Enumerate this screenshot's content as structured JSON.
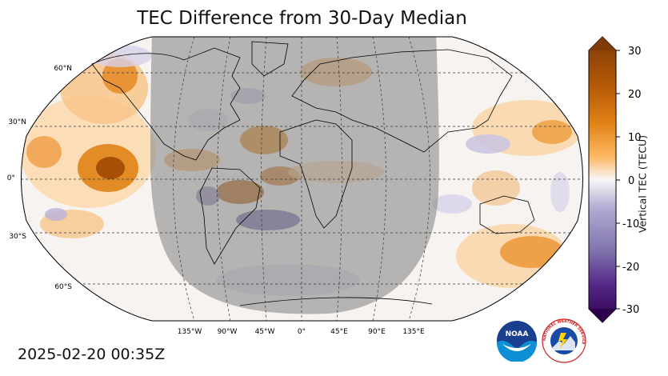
{
  "title": "TEC Difference from 30-Day Median",
  "timestamp": "2025-02-20 00:35Z",
  "projection": "Robinson",
  "night_side_shading": true,
  "lat_labels": [
    "60°N",
    "30°N",
    "0°",
    "30°S",
    "60°S"
  ],
  "lon_labels": [
    "135°W",
    "90°W",
    "45°W",
    "0°",
    "45°E",
    "90°E",
    "135°E"
  ],
  "colorbar": {
    "label": "Vertical TEC (TECU)",
    "ticks": [
      "30",
      "20",
      "10",
      "0",
      "-10",
      "-20",
      "-30"
    ],
    "range": [
      -30,
      30
    ],
    "colormap": "PuOr_r",
    "colors": {
      "max": "#7f3b08",
      "high": "#e08214",
      "mid": "#f7f7f7",
      "low": "#8073ac",
      "min": "#2d004b"
    }
  },
  "logos": {
    "noaa": {
      "text": "NOAA",
      "icon": "noaa-logo"
    },
    "nws": {
      "text": "NATIONAL WEATHER SERVICE",
      "icon": "nws-logo"
    }
  }
}
